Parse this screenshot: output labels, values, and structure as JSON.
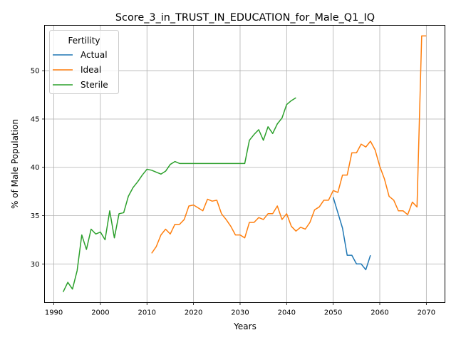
{
  "chart_data": {
    "type": "line",
    "title": "Score_3_in_TRUST_IN_EDUCATION_for_Male_Q1_IQ",
    "xlabel": "Years",
    "ylabel": "% of Male Population",
    "xlim": [
      1988,
      2074
    ],
    "ylim": [
      26.0,
      54.7
    ],
    "xticks": [
      1990,
      2000,
      2010,
      2020,
      2030,
      2040,
      2050,
      2060,
      2070
    ],
    "yticks": [
      30,
      35,
      40,
      45,
      50
    ],
    "grid": true,
    "legend": {
      "title": "Fertility",
      "position": "top-left"
    },
    "series": [
      {
        "name": "Actual",
        "color": "#1f77b4",
        "x": [
          2050,
          2051,
          2052,
          2053,
          2054,
          2055,
          2056,
          2057,
          2058
        ],
        "y": [
          36.9,
          35.3,
          33.7,
          30.9,
          30.9,
          30.0,
          30.0,
          29.4,
          30.9
        ]
      },
      {
        "name": "Ideal",
        "color": "#ff7f0e",
        "x": [
          2011,
          2012,
          2013,
          2014,
          2015,
          2016,
          2017,
          2018,
          2019,
          2020,
          2021,
          2022,
          2023,
          2024,
          2025,
          2026,
          2027,
          2028,
          2029,
          2030,
          2031,
          2032,
          2033,
          2034,
          2035,
          2036,
          2037,
          2038,
          2039,
          2040,
          2041,
          2042,
          2043,
          2044,
          2045,
          2046,
          2047,
          2048,
          2049,
          2050,
          2051,
          2052,
          2053,
          2054,
          2055,
          2056,
          2057,
          2058,
          2059,
          2060,
          2061,
          2062,
          2063,
          2064,
          2065,
          2066,
          2067,
          2068,
          2069,
          2070
        ],
        "y": [
          31.1,
          31.8,
          33.0,
          33.6,
          33.1,
          34.1,
          34.1,
          34.6,
          36.0,
          36.1,
          35.8,
          35.5,
          36.7,
          36.5,
          36.6,
          35.2,
          34.6,
          33.9,
          33.0,
          33.0,
          32.7,
          34.3,
          34.3,
          34.8,
          34.6,
          35.2,
          35.2,
          36.0,
          34.6,
          35.2,
          33.9,
          33.4,
          33.8,
          33.6,
          34.3,
          35.6,
          35.9,
          36.6,
          36.6,
          37.6,
          37.4,
          39.2,
          39.2,
          41.5,
          41.5,
          42.4,
          42.1,
          42.7,
          41.8,
          40.1,
          38.8,
          37.0,
          36.6,
          35.5,
          35.5,
          35.1,
          36.4,
          35.9,
          53.6,
          53.6
        ]
      },
      {
        "name": "Sterile",
        "color": "#2ca02c",
        "x": [
          1992,
          1993,
          1994,
          1995,
          1996,
          1997,
          1998,
          1999,
          2000,
          2001,
          2002,
          2003,
          2004,
          2005,
          2006,
          2007,
          2008,
          2009,
          2010,
          2011,
          2012,
          2013,
          2014,
          2015,
          2016,
          2017,
          2018,
          2019,
          2020,
          2021,
          2022,
          2023,
          2024,
          2025,
          2026,
          2027,
          2028,
          2029,
          2030,
          2031,
          2032,
          2033,
          2034,
          2035,
          2036,
          2037,
          2038,
          2039,
          2040,
          2041,
          2042
        ],
        "y": [
          27.1,
          28.1,
          27.4,
          29.3,
          33.0,
          31.5,
          33.6,
          33.1,
          33.3,
          32.5,
          35.5,
          32.7,
          35.2,
          35.3,
          37.0,
          37.9,
          38.5,
          39.2,
          39.8,
          39.7,
          39.5,
          39.3,
          39.6,
          40.3,
          40.6,
          40.4,
          40.4,
          40.4,
          40.4,
          40.4,
          40.4,
          40.4,
          40.4,
          40.4,
          40.4,
          40.4,
          40.4,
          40.4,
          40.4,
          40.4,
          42.8,
          43.4,
          43.9,
          42.8,
          44.2,
          43.5,
          44.5,
          45.1,
          46.5,
          46.9,
          47.2
        ]
      }
    ]
  }
}
